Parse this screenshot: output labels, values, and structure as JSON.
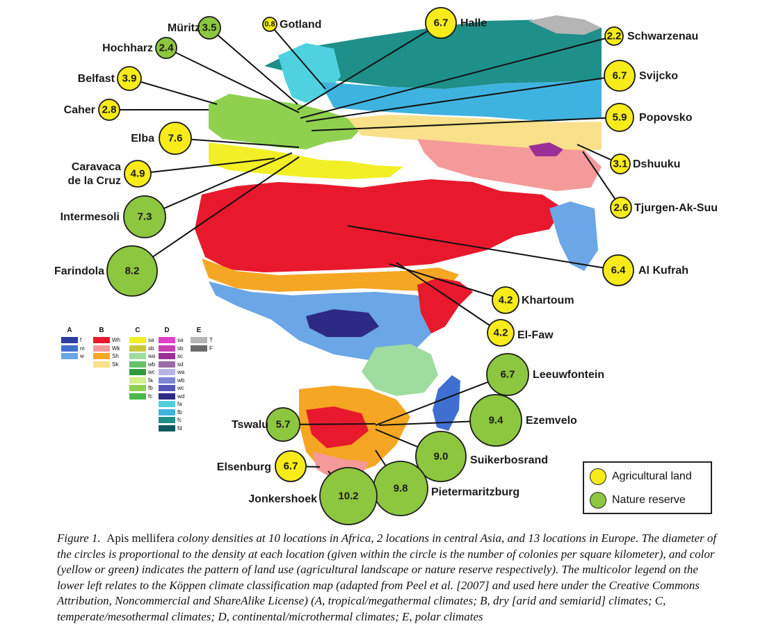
{
  "sites": [
    {
      "name": "Müritz",
      "value": "3.5",
      "land_use": "nature"
    },
    {
      "name": "Gotland",
      "value": "0.8",
      "land_use": "agricultural"
    },
    {
      "name": "Halle",
      "value": "6.7",
      "land_use": "agricultural"
    },
    {
      "name": "Hochharz",
      "value": "2.4",
      "land_use": "nature"
    },
    {
      "name": "Schwarzenau",
      "value": "2.2",
      "land_use": "agricultural"
    },
    {
      "name": "Belfast",
      "value": "3.9",
      "land_use": "agricultural"
    },
    {
      "name": "Svijcko",
      "value": "6.7",
      "land_use": "agricultural"
    },
    {
      "name": "Caher",
      "value": "2.8",
      "land_use": "agricultural"
    },
    {
      "name": "Popovsko",
      "value": "5.9",
      "land_use": "agricultural"
    },
    {
      "name": "Elba",
      "value": "7.6",
      "land_use": "agricultural"
    },
    {
      "name": "Dshuuku",
      "value": "3.1",
      "land_use": "agricultural"
    },
    {
      "name": "Caravaca\nde la Cruz",
      "value": "4.9",
      "land_use": "agricultural"
    },
    {
      "name": "Tjurgen-Ak-Suu",
      "value": "2.6",
      "land_use": "agricultural"
    },
    {
      "name": "Intermesoli",
      "value": "7.3",
      "land_use": "nature"
    },
    {
      "name": "Farindola",
      "value": "8.2",
      "land_use": "nature"
    },
    {
      "name": "Al Kufrah",
      "value": "6.4",
      "land_use": "agricultural"
    },
    {
      "name": "Khartoum",
      "value": "4.2",
      "land_use": "agricultural"
    },
    {
      "name": "El-Faw",
      "value": "4.2",
      "land_use": "agricultural"
    },
    {
      "name": "Leeuwfontein",
      "value": "6.7",
      "land_use": "nature"
    },
    {
      "name": "Tswalu",
      "value": "5.7",
      "land_use": "nature"
    },
    {
      "name": "Ezemvelo",
      "value": "9.4",
      "land_use": "nature"
    },
    {
      "name": "Suikerbosrand",
      "value": "9.0",
      "land_use": "nature"
    },
    {
      "name": "Elsenburg",
      "value": "6.7",
      "land_use": "agricultural"
    },
    {
      "name": "Pietermaritzburg",
      "value": "9.8",
      "land_use": "nature"
    },
    {
      "name": "Jonkershoek",
      "value": "10.2",
      "land_use": "nature"
    }
  ],
  "colors": {
    "agricultural": "#f7ec1a",
    "nature": "#8dc63f"
  },
  "legend": {
    "agricultural": "Agricultural land",
    "nature": "Nature reserve"
  },
  "koppen_legend": [
    {
      "group": "A",
      "items": [
        {
          "code": "f",
          "color": "#2b3fa3"
        },
        {
          "code": "m",
          "color": "#3f6fd1"
        },
        {
          "code": "w",
          "color": "#6ba6e6"
        }
      ]
    },
    {
      "group": "B",
      "items": [
        {
          "code": "Wh",
          "color": "#e8192c"
        },
        {
          "code": "Wk",
          "color": "#f49a9a"
        },
        {
          "code": "Sh",
          "color": "#f5a623"
        },
        {
          "code": "Sk",
          "color": "#f9e08a"
        }
      ]
    },
    {
      "group": "C",
      "items": [
        {
          "code": "sa",
          "color": "#f2ef26"
        },
        {
          "code": "sb",
          "color": "#c8c83a"
        },
        {
          "code": "wa",
          "color": "#9fdc9f"
        },
        {
          "code": "wb",
          "color": "#66c266"
        },
        {
          "code": "wc",
          "color": "#2f9b3f"
        },
        {
          "code": "fa",
          "color": "#d4ef8a"
        },
        {
          "code": "fb",
          "color": "#8fd14f"
        },
        {
          "code": "fc",
          "color": "#49b84a"
        }
      ]
    },
    {
      "group": "D",
      "items": [
        {
          "code": "sa",
          "color": "#e040c8"
        },
        {
          "code": "sb",
          "color": "#c83fb4"
        },
        {
          "code": "sc",
          "color": "#9c2f96"
        },
        {
          "code": "sd",
          "color": "#9a6aa8"
        },
        {
          "code": "wa",
          "color": "#b7b3e6"
        },
        {
          "code": "wb",
          "color": "#7f86d6"
        },
        {
          "code": "wc",
          "color": "#5356b8"
        },
        {
          "code": "wd",
          "color": "#2c2a84"
        },
        {
          "code": "fa",
          "color": "#4fd1df"
        },
        {
          "code": "fb",
          "color": "#3fb3df"
        },
        {
          "code": "fc",
          "color": "#1f8f8a"
        },
        {
          "code": "fd",
          "color": "#0f5a5f"
        }
      ]
    },
    {
      "group": "E",
      "items": [
        {
          "code": "T",
          "color": "#b5b5b5"
        },
        {
          "code": "F",
          "color": "#6b6b6b"
        }
      ]
    }
  ],
  "caption": {
    "fig": "Figure 1.",
    "genus": "Apis mellifera",
    "body": "colony densities at 10 locations in Africa, 2 locations in central Asia, and 13 locations in Europe. The diameter of the circles is proportional to the density at each location (given within the circle is the number of colonies per square kilometer), and color (yellow or green) indicates the pattern of land use (agricultural landscape or nature reserve respectively). The multicolor legend on the lower left relates to the Köppen climate classification map (adapted from Peel et al. [2007] and used here under the Creative Commons Attribution, Noncommercial and ShareAlike License) (A, tropical/megathermal climates; B, dry [arid and semiarid] climates; C, temperate/mesothermal climates; D, continental/microthermal climates; E, polar climates"
  }
}
